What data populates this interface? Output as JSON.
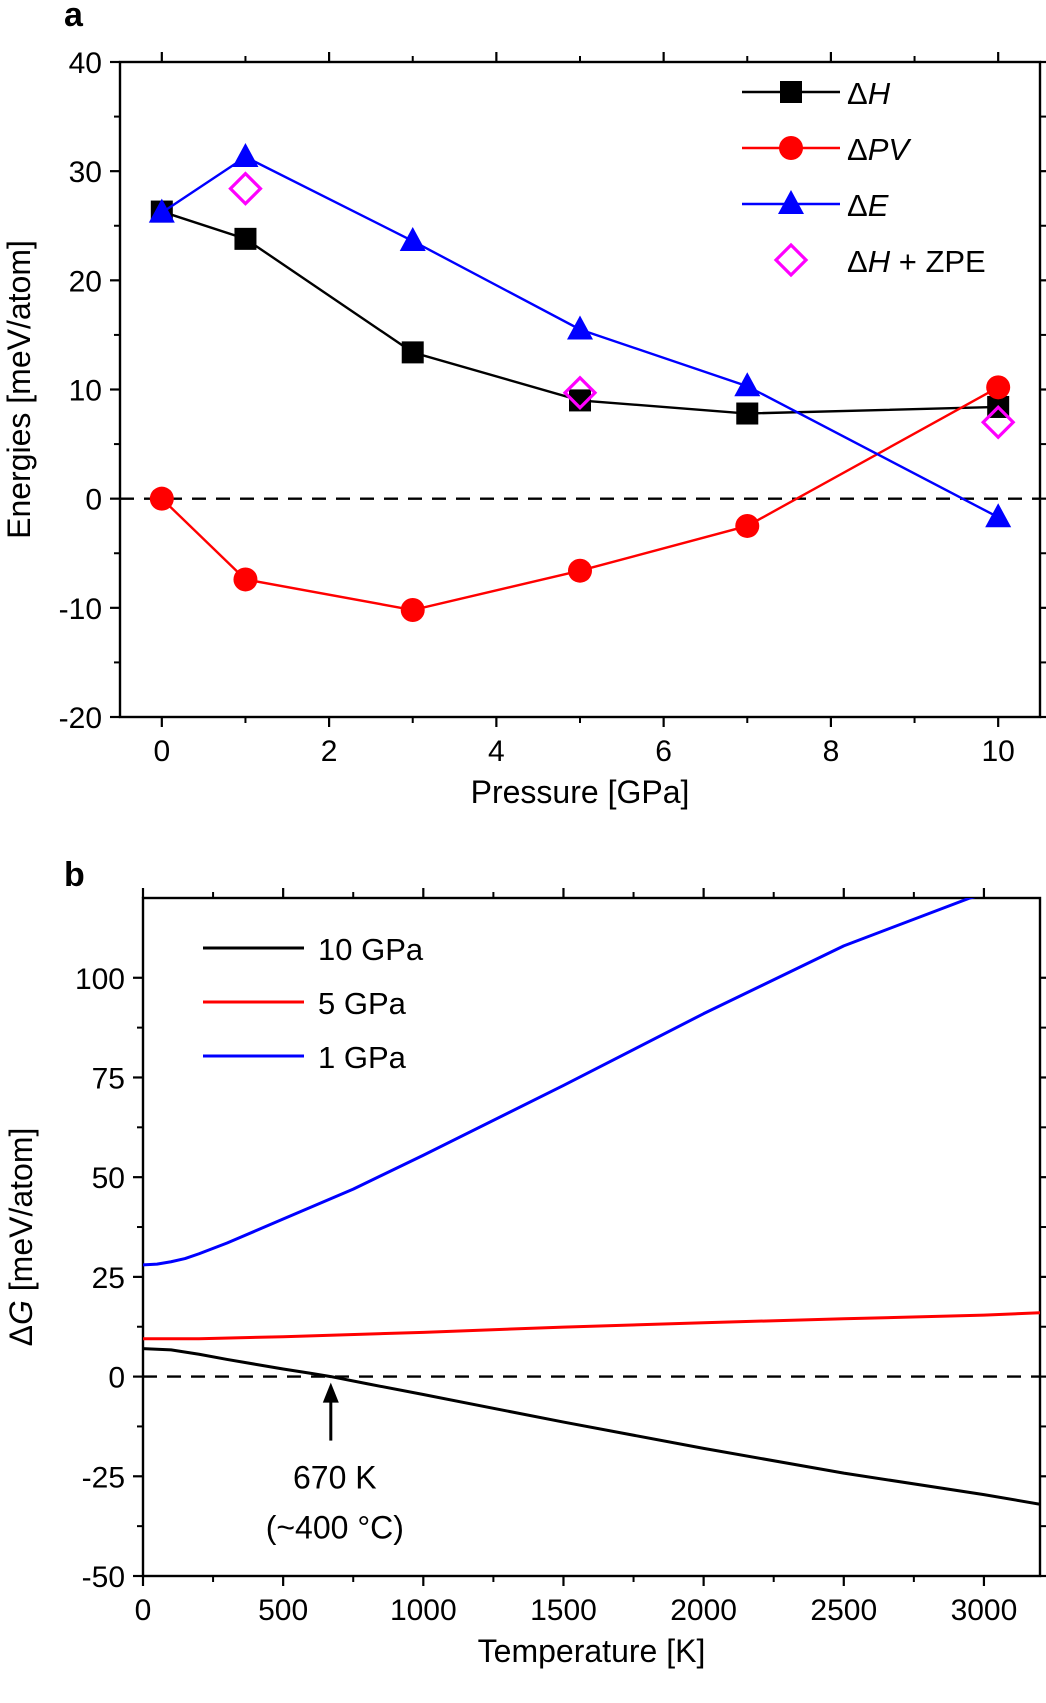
{
  "figure": {
    "panel_a_label": "a",
    "panel_b_label": "b",
    "zero_line_style": "dashed"
  },
  "chart_data": [
    {
      "type": "line",
      "id": "a",
      "title": "",
      "xlabel": "Pressure [GPa]",
      "ylabel": "Energies [meV/atom]",
      "xlim": [
        -0.5,
        10.5
      ],
      "ylim": [
        -20,
        40
      ],
      "xticks": [
        0,
        2,
        4,
        6,
        8,
        10
      ],
      "yticks": [
        40,
        30,
        20,
        10,
        0,
        -10,
        -20
      ],
      "ytick_labels": [
        "40",
        "30",
        "20",
        "10",
        "0",
        "-10",
        "-20"
      ],
      "grid": false,
      "legend_position": "top-right",
      "series": [
        {
          "name": "ΔH",
          "sym": "Δ",
          "var": "H",
          "suffix": "",
          "color": "#000000",
          "marker": "square",
          "line": true,
          "x": [
            0,
            1,
            3,
            5,
            7,
            10
          ],
          "y": [
            26.3,
            23.8,
            13.4,
            9.0,
            7.8,
            8.4
          ]
        },
        {
          "name": "ΔPV",
          "sym": "Δ",
          "var": "PV",
          "suffix": "",
          "color": "#ff0000",
          "marker": "circle",
          "line": true,
          "x": [
            0,
            1,
            3,
            5,
            7,
            10
          ],
          "y": [
            0.0,
            -7.4,
            -10.2,
            -6.6,
            -2.5,
            10.2
          ]
        },
        {
          "name": "ΔE",
          "sym": "Δ",
          "var": "E",
          "suffix": "",
          "color": "#0000ff",
          "marker": "triangle",
          "line": true,
          "x": [
            0,
            1,
            3,
            5,
            7,
            10
          ],
          "y": [
            26.2,
            31.3,
            23.6,
            15.5,
            10.3,
            -1.7
          ]
        },
        {
          "name": "ΔH + ZPE",
          "sym": "Δ",
          "var": "H",
          "suffix": " + ZPE",
          "color": "#ff00ff",
          "marker": "diamond",
          "line": false,
          "x": [
            1,
            5,
            10
          ],
          "y": [
            28.4,
            9.7,
            7.0
          ]
        }
      ]
    },
    {
      "type": "line",
      "id": "b",
      "title": "",
      "xlabel": "Temperature [K]",
      "ylabel": "ΔG [meV/atom]",
      "ylabel_sym": "Δ",
      "ylabel_var": "G",
      "ylabel_rest": " [meV/atom]",
      "xlim": [
        0,
        3200
      ],
      "ylim": [
        -50,
        120
      ],
      "xticks": [
        0,
        500,
        1000,
        1500,
        2000,
        2500,
        3000
      ],
      "yticks": [
        100,
        75,
        50,
        25,
        0,
        -25,
        -50
      ],
      "ytick_labels": [
        "100",
        "75",
        "50",
        "25",
        "0",
        "-25",
        "-50"
      ],
      "grid": false,
      "legend_position": "top-left",
      "series": [
        {
          "name": "10 GPa",
          "color": "#000000",
          "x": [
            0,
            100,
            200,
            300,
            400,
            500,
            600,
            670,
            800,
            1000,
            1500,
            2000,
            2500,
            3000,
            3200
          ],
          "y": [
            7.0,
            6.7,
            5.6,
            4.3,
            3.1,
            1.9,
            0.8,
            0.0,
            -1.8,
            -4.5,
            -11.4,
            -18.0,
            -24.2,
            -29.6,
            -32.0
          ]
        },
        {
          "name": "5 GPa",
          "color": "#ff0000",
          "x": [
            0,
            200,
            500,
            1000,
            1500,
            2000,
            2500,
            3000,
            3200
          ],
          "y": [
            9.5,
            9.5,
            10.0,
            11.1,
            12.4,
            13.5,
            14.5,
            15.4,
            16.0
          ]
        },
        {
          "name": "1 GPa",
          "color": "#0000ff",
          "x": [
            0,
            50,
            100,
            150,
            200,
            300,
            400,
            500,
            750,
            1000,
            1500,
            2000,
            2500,
            2950,
            3000
          ],
          "y": [
            28.0,
            28.2,
            28.8,
            29.6,
            30.8,
            33.5,
            36.5,
            39.5,
            47.0,
            55.5,
            73.0,
            91.0,
            108.0,
            120.0,
            121.0
          ]
        }
      ],
      "annotation": {
        "line1": "670 K",
        "line2": "(~400 °C)",
        "x": 670,
        "y": 0
      }
    }
  ]
}
